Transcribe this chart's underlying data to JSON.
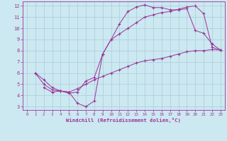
{
  "xlabel": "Windchill (Refroidissement éolien,°C)",
  "bg_color": "#cce8f0",
  "grid_color": "#aaccdd",
  "line_color": "#993399",
  "xlim": [
    -0.5,
    23.5
  ],
  "ylim": [
    2.7,
    12.4
  ],
  "xticks": [
    0,
    1,
    2,
    3,
    4,
    5,
    6,
    7,
    8,
    9,
    10,
    11,
    12,
    13,
    14,
    15,
    16,
    17,
    18,
    19,
    20,
    21,
    22,
    23
  ],
  "yticks": [
    3,
    4,
    5,
    6,
    7,
    8,
    9,
    10,
    11,
    12
  ],
  "line1_x": [
    1,
    2,
    3,
    4,
    5,
    6,
    7,
    8,
    9,
    10,
    11,
    12,
    13,
    14,
    15,
    16,
    17,
    18,
    19,
    20,
    21,
    22,
    23
  ],
  "line1_y": [
    6.0,
    5.4,
    4.7,
    4.4,
    4.3,
    3.3,
    3.0,
    3.5,
    7.7,
    9.0,
    10.4,
    11.5,
    11.9,
    12.1,
    11.85,
    11.85,
    11.65,
    11.65,
    11.75,
    9.8,
    9.55,
    8.6,
    8.05
  ],
  "line2_x": [
    2,
    3,
    4,
    5,
    6,
    7,
    8,
    9,
    10,
    11,
    12,
    13,
    14,
    15,
    16,
    17,
    18,
    19,
    20,
    21,
    22,
    23
  ],
  "line2_y": [
    4.7,
    4.3,
    4.4,
    4.2,
    4.3,
    5.3,
    5.6,
    7.7,
    9.0,
    9.5,
    10.0,
    10.5,
    11.0,
    11.2,
    11.4,
    11.5,
    11.7,
    11.9,
    12.0,
    11.3,
    8.3,
    8.05
  ],
  "line3_x": [
    1,
    2,
    3,
    4,
    5,
    6,
    7,
    8,
    9,
    10,
    11,
    12,
    13,
    14,
    15,
    16,
    17,
    18,
    19,
    20,
    21,
    22,
    23
  ],
  "line3_y": [
    6.0,
    5.0,
    4.5,
    4.4,
    4.3,
    4.6,
    5.0,
    5.4,
    5.7,
    6.0,
    6.3,
    6.6,
    6.9,
    7.1,
    7.2,
    7.3,
    7.5,
    7.7,
    7.9,
    8.0,
    8.0,
    8.1,
    8.05
  ]
}
